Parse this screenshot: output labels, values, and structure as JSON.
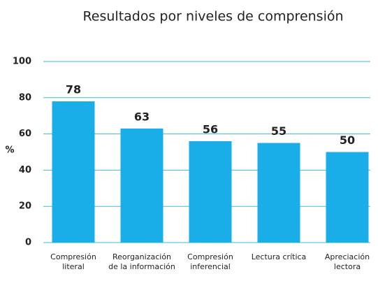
{
  "chart_data": {
    "type": "bar",
    "title": "Resultados por niveles de comprensión",
    "ylabel": "%",
    "categories": [
      "Compresión literal",
      "Reorganización de la información",
      "Compresión inferencial",
      "Lectura crítica",
      "Apreciación lectora"
    ],
    "values": [
      78,
      63,
      56,
      55,
      50
    ],
    "color": "#1aaee8",
    "ylim": [
      0,
      100
    ],
    "yticks": [
      0,
      20,
      40,
      60,
      80,
      100
    ],
    "grid": true
  }
}
